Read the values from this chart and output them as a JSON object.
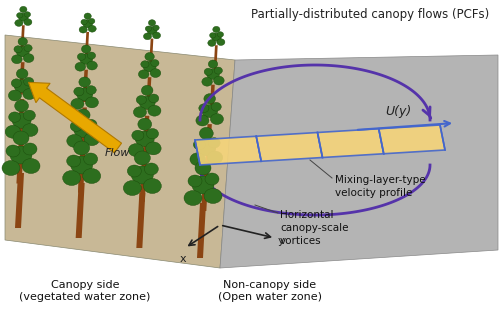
{
  "title": "Partially-distributed canopy flows (PCFs)",
  "bg_color": "#ffffff",
  "canopy_ground_color": "#c8b896",
  "open_ground_color": "#b4b4b4",
  "flow_arrow_color": "#e8a800",
  "flow_arrow_edge": "#b07800",
  "flow_text": "Flow",
  "vortex_color": "#5533aa",
  "velocity_panel_color": "#f5d47a",
  "velocity_panel_edge": "#4466cc",
  "label_Uy": "U(y)",
  "label_mixing": "Mixing-layer-type\nvelocity profile",
  "label_vortices": "Horizontal\ncanopy-scale\nvortices",
  "label_canopy_side": "Canopy side\n(vegetated water zone)",
  "label_noncanopy_side": "Non-canopy side\n(Open water zone)",
  "label_x": "x",
  "label_y": "y",
  "stem_color": "#8B4513",
  "leaf_color": "#2d6e1e",
  "leaf_edge_color": "#1a4a0a",
  "axis_color": "#222222",
  "label_color": "#111111",
  "title_fontsize": 8.5,
  "title_color": "#222222"
}
